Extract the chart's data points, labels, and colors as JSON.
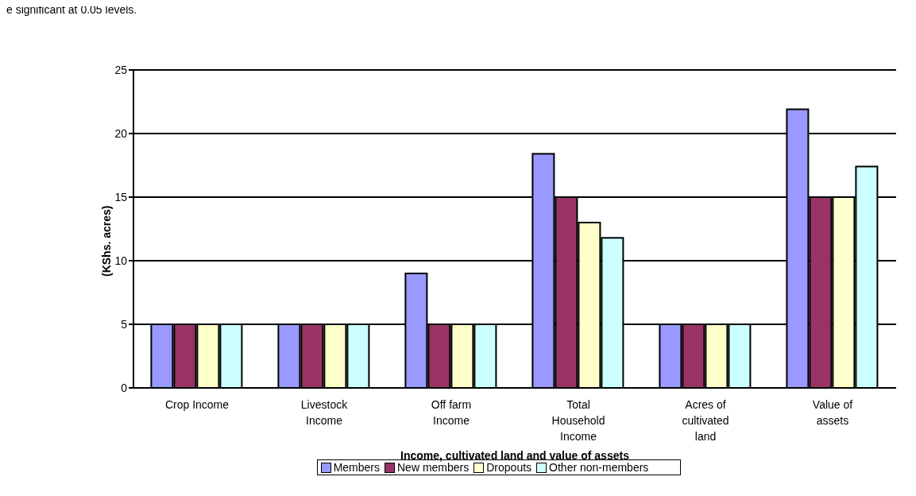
{
  "chart_data": {
    "type": "bar",
    "annotations": [
      "e significant at 0.05 levels."
    ],
    "xlabel": "Income, cultivated land and value of assets",
    "ylabel": "(KShs. acres)",
    "categories": [
      "Crop Income",
      "Livestock Income",
      "Off farm Income",
      "Total Household Income",
      "Acres of cultivated land",
      "Value of assets"
    ],
    "series": [
      {
        "name": "Members",
        "color": "#9999ff",
        "values": [
          5,
          5,
          9,
          18.4,
          5,
          21.9
        ]
      },
      {
        "name": "New members",
        "color": "#993366",
        "values": [
          5,
          5,
          5,
          15,
          5,
          15
        ]
      },
      {
        "name": "Dropouts",
        "color": "#ffffcc",
        "values": [
          5,
          5,
          5,
          13,
          5,
          15
        ]
      },
      {
        "name": "Other non-members",
        "color": "#ccffff",
        "values": [
          5,
          5,
          5,
          11.8,
          5,
          17.4
        ]
      }
    ],
    "ylim": [
      0,
      25
    ],
    "yticks": [
      0,
      5,
      10,
      15,
      20,
      25
    ],
    "grid": "y",
    "legend": "bottom"
  }
}
